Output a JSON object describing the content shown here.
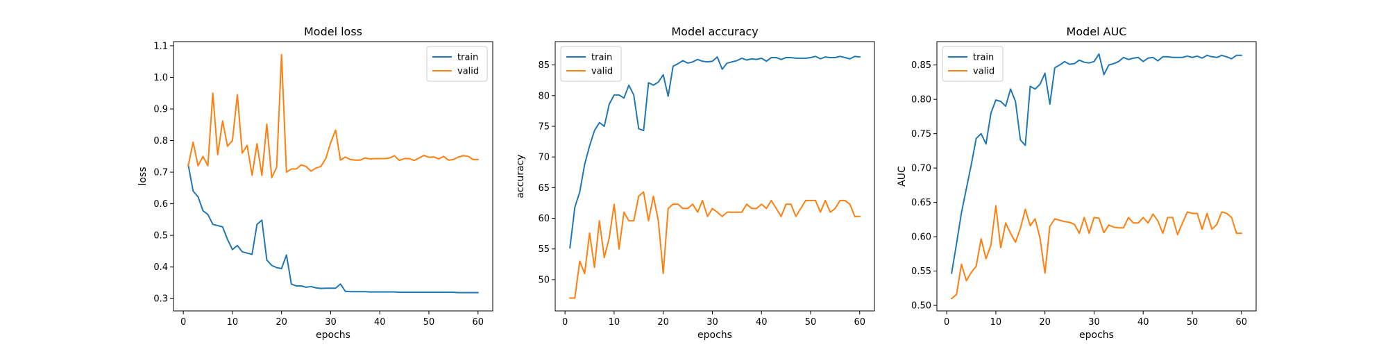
{
  "colors": {
    "train": "#1f77b4",
    "valid": "#ff7f0e",
    "axes": "#000000",
    "legend_frame": "#cccccc"
  },
  "chart_data": [
    {
      "type": "line",
      "title": "Model loss",
      "xlabel": "epochs",
      "ylabel": "loss",
      "xlim": [
        -2,
        63
      ],
      "ylim": [
        0.261,
        1.113
      ],
      "xticks": [
        0,
        10,
        20,
        30,
        40,
        50,
        60
      ],
      "yticks": [
        0.3,
        0.4,
        0.5,
        0.6,
        0.7,
        0.8,
        0.9,
        1.0,
        1.1
      ],
      "tick_decimals": 1,
      "grid": false,
      "legend_loc": "upper right",
      "x": [
        1,
        2,
        3,
        4,
        5,
        6,
        7,
        8,
        9,
        10,
        11,
        12,
        13,
        14,
        15,
        16,
        17,
        18,
        19,
        20,
        21,
        22,
        23,
        24,
        25,
        26,
        27,
        28,
        29,
        30,
        31,
        32,
        33,
        34,
        35,
        36,
        37,
        38,
        39,
        40,
        41,
        42,
        43,
        44,
        45,
        46,
        47,
        48,
        49,
        50,
        51,
        52,
        53,
        54,
        55,
        56,
        57,
        58,
        59,
        60
      ],
      "series": [
        {
          "name": "train",
          "color": "#1f77b4",
          "values": [
            0.723,
            0.64,
            0.622,
            0.578,
            0.566,
            0.535,
            0.531,
            0.527,
            0.487,
            0.455,
            0.468,
            0.448,
            0.444,
            0.44,
            0.535,
            0.548,
            0.422,
            0.405,
            0.398,
            0.395,
            0.438,
            0.346,
            0.34,
            0.34,
            0.336,
            0.338,
            0.334,
            0.332,
            0.333,
            0.333,
            0.333,
            0.346,
            0.323,
            0.322,
            0.322,
            0.322,
            0.322,
            0.321,
            0.321,
            0.321,
            0.321,
            0.321,
            0.321,
            0.32,
            0.32,
            0.32,
            0.32,
            0.32,
            0.32,
            0.32,
            0.32,
            0.32,
            0.32,
            0.32,
            0.32,
            0.319,
            0.319,
            0.319,
            0.319,
            0.319
          ]
        },
        {
          "name": "valid",
          "color": "#ff7f0e",
          "values": [
            0.72,
            0.795,
            0.72,
            0.75,
            0.72,
            0.95,
            0.755,
            0.862,
            0.782,
            0.8,
            0.945,
            0.76,
            0.785,
            0.69,
            0.79,
            0.69,
            0.852,
            0.683,
            0.715,
            1.072,
            0.7,
            0.71,
            0.71,
            0.723,
            0.718,
            0.703,
            0.713,
            0.718,
            0.743,
            0.793,
            0.833,
            0.738,
            0.748,
            0.74,
            0.738,
            0.738,
            0.745,
            0.742,
            0.743,
            0.743,
            0.743,
            0.745,
            0.752,
            0.737,
            0.743,
            0.743,
            0.737,
            0.745,
            0.753,
            0.747,
            0.748,
            0.742,
            0.75,
            0.738,
            0.74,
            0.748,
            0.752,
            0.75,
            0.74,
            0.74
          ]
        }
      ]
    },
    {
      "type": "line",
      "title": "Model accuracy",
      "xlabel": "epochs",
      "ylabel": "accuracy",
      "xlim": [
        -2,
        63
      ],
      "ylim": [
        44.9,
        88.8
      ],
      "xticks": [
        0,
        10,
        20,
        30,
        40,
        50,
        60
      ],
      "yticks": [
        50,
        55,
        60,
        65,
        70,
        75,
        80,
        85
      ],
      "tick_decimals": 0,
      "grid": false,
      "legend_loc": "upper left",
      "x": [
        1,
        2,
        3,
        4,
        5,
        6,
        7,
        8,
        9,
        10,
        11,
        12,
        13,
        14,
        15,
        16,
        17,
        18,
        19,
        20,
        21,
        22,
        23,
        24,
        25,
        26,
        27,
        28,
        29,
        30,
        31,
        32,
        33,
        34,
        35,
        36,
        37,
        38,
        39,
        40,
        41,
        42,
        43,
        44,
        45,
        46,
        47,
        48,
        49,
        50,
        51,
        52,
        53,
        54,
        55,
        56,
        57,
        58,
        59,
        60
      ],
      "series": [
        {
          "name": "train",
          "color": "#1f77b4",
          "values": [
            55.2,
            61.8,
            64.3,
            68.8,
            71.8,
            74.3,
            75.6,
            75.0,
            78.6,
            80.1,
            80.1,
            79.6,
            81.7,
            80.1,
            74.6,
            74.3,
            82.1,
            81.7,
            82.2,
            83.4,
            79.9,
            84.8,
            85.2,
            85.7,
            85.3,
            85.5,
            85.9,
            85.6,
            85.5,
            85.6,
            86.3,
            84.3,
            85.3,
            85.5,
            85.7,
            86.1,
            85.8,
            86.0,
            85.9,
            86.1,
            85.6,
            86.2,
            86.2,
            85.9,
            86.2,
            86.2,
            86.1,
            86.1,
            86.1,
            86.2,
            86.4,
            86.0,
            86.3,
            86.2,
            86.2,
            86.4,
            86.2,
            86.0,
            86.4,
            86.3
          ]
        },
        {
          "name": "valid",
          "color": "#ff7f0e",
          "values": [
            47.0,
            47.0,
            53.0,
            51.0,
            57.6,
            52.0,
            59.6,
            53.6,
            56.8,
            62.3,
            55.0,
            61.0,
            59.6,
            59.6,
            63.6,
            64.3,
            59.6,
            63.6,
            59.6,
            51.0,
            61.6,
            62.3,
            62.3,
            61.6,
            61.6,
            62.3,
            61.0,
            62.9,
            60.3,
            61.6,
            61.0,
            60.3,
            61.0,
            61.0,
            61.0,
            61.0,
            62.3,
            61.6,
            61.6,
            62.3,
            61.6,
            62.9,
            61.6,
            60.3,
            62.3,
            62.3,
            60.3,
            61.6,
            62.9,
            62.9,
            62.9,
            61.0,
            62.9,
            61.0,
            61.6,
            62.9,
            62.9,
            62.3,
            60.3,
            60.3
          ]
        }
      ]
    },
    {
      "type": "line",
      "title": "Model AUC",
      "xlabel": "epochs",
      "ylabel": "AUC",
      "xlim": [
        -2,
        63
      ],
      "ylim": [
        0.492,
        0.884
      ],
      "xticks": [
        0,
        10,
        20,
        30,
        40,
        50,
        60
      ],
      "yticks": [
        0.5,
        0.55,
        0.6,
        0.65,
        0.7,
        0.75,
        0.8,
        0.85
      ],
      "tick_decimals": 2,
      "grid": false,
      "legend_loc": "upper left",
      "x": [
        1,
        2,
        3,
        4,
        5,
        6,
        7,
        8,
        9,
        10,
        11,
        12,
        13,
        14,
        15,
        16,
        17,
        18,
        19,
        20,
        21,
        22,
        23,
        24,
        25,
        26,
        27,
        28,
        29,
        30,
        31,
        32,
        33,
        34,
        35,
        36,
        37,
        38,
        39,
        40,
        41,
        42,
        43,
        44,
        45,
        46,
        47,
        48,
        49,
        50,
        51,
        52,
        53,
        54,
        55,
        56,
        57,
        58,
        59,
        60
      ],
      "series": [
        {
          "name": "train",
          "color": "#1f77b4",
          "values": [
            0.547,
            0.59,
            0.635,
            0.67,
            0.705,
            0.743,
            0.75,
            0.735,
            0.78,
            0.799,
            0.797,
            0.79,
            0.815,
            0.797,
            0.741,
            0.733,
            0.819,
            0.815,
            0.822,
            0.838,
            0.793,
            0.846,
            0.85,
            0.855,
            0.851,
            0.852,
            0.857,
            0.854,
            0.853,
            0.855,
            0.866,
            0.836,
            0.85,
            0.852,
            0.855,
            0.861,
            0.858,
            0.86,
            0.861,
            0.855,
            0.86,
            0.861,
            0.856,
            0.862,
            0.862,
            0.861,
            0.861,
            0.861,
            0.863,
            0.861,
            0.863,
            0.86,
            0.864,
            0.862,
            0.861,
            0.864,
            0.862,
            0.859,
            0.864,
            0.864
          ]
        },
        {
          "name": "valid",
          "color": "#ff7f0e",
          "values": [
            0.51,
            0.516,
            0.56,
            0.536,
            0.548,
            0.557,
            0.597,
            0.568,
            0.588,
            0.645,
            0.584,
            0.62,
            0.605,
            0.592,
            0.612,
            0.64,
            0.616,
            0.626,
            0.598,
            0.547,
            0.615,
            0.626,
            0.624,
            0.622,
            0.621,
            0.618,
            0.605,
            0.628,
            0.605,
            0.628,
            0.627,
            0.606,
            0.617,
            0.614,
            0.613,
            0.613,
            0.628,
            0.62,
            0.62,
            0.628,
            0.62,
            0.633,
            0.623,
            0.605,
            0.628,
            0.628,
            0.603,
            0.62,
            0.636,
            0.634,
            0.634,
            0.611,
            0.634,
            0.611,
            0.618,
            0.636,
            0.634,
            0.628,
            0.605,
            0.605
          ]
        }
      ]
    }
  ]
}
